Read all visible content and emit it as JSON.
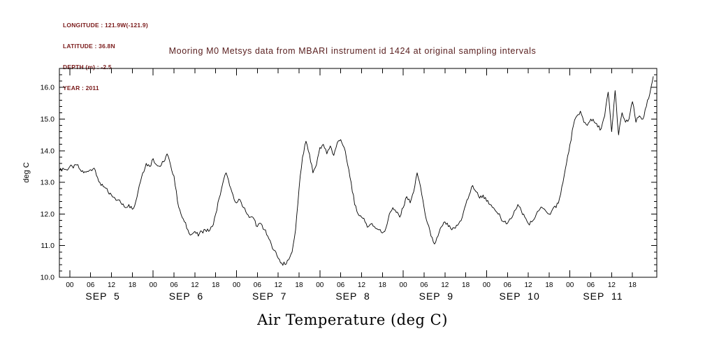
{
  "header": {
    "meta_lines": [
      "LONGITUDE : 121.9W(-121.9)",
      "LATITUDE : 36.8N",
      "DEPTH (m) : -2.5",
      "YEAR : 2011"
    ],
    "title": "Mooring M0 Metsys data from MBARI instrument id 1424 at original sampling intervals"
  },
  "colors": {
    "metadata_text": "#7a1a1a",
    "title_text": "#5a2020",
    "plot_line": "#000000",
    "axis": "#000000"
  },
  "chart_data": {
    "type": "line",
    "title": "Mooring M0 Metsys data from MBARI instrument id 1424 at original sampling intervals",
    "xlabel": "Air Temperature (deg C)",
    "ylabel": "deg C",
    "ylim": [
      10.0,
      16.6
    ],
    "yticks": [
      10.0,
      11.0,
      12.0,
      13.0,
      14.0,
      15.0,
      16.0
    ],
    "y_minor_step": 0.2,
    "grid": false,
    "x_hours_domain": [
      -3,
      169
    ],
    "x_tick_step_hours": 6,
    "x_tick_range_hours": [
      0,
      162
    ],
    "x_tick_label_cycle": [
      "00",
      "06",
      "12",
      "18"
    ],
    "day_labels": [
      {
        "label": "SEP 5",
        "hour": 9.5
      },
      {
        "label": "SEP 6",
        "hour": 33.5
      },
      {
        "label": "SEP 7",
        "hour": 57.5
      },
      {
        "label": "SEP 8",
        "hour": 81.5
      },
      {
        "label": "SEP 9",
        "hour": 105.5
      },
      {
        "label": "SEP 10",
        "hour": 129.5
      },
      {
        "label": "SEP 11",
        "hour": 153.5
      }
    ],
    "series": [
      {
        "name": "air_temperature_degC",
        "x_start_hour": -3,
        "x_step_hours": 1,
        "values": [
          13.35,
          13.45,
          13.4,
          13.5,
          13.45,
          13.55,
          13.4,
          13.3,
          13.35,
          13.4,
          13.45,
          13.15,
          12.9,
          12.85,
          12.7,
          12.6,
          12.5,
          12.45,
          12.3,
          12.2,
          12.3,
          12.15,
          12.4,
          12.9,
          13.3,
          13.6,
          13.5,
          13.75,
          13.55,
          13.5,
          13.65,
          13.9,
          13.55,
          13.2,
          12.4,
          12.0,
          11.75,
          11.5,
          11.35,
          11.45,
          11.3,
          11.45,
          11.5,
          11.45,
          11.6,
          12.0,
          12.5,
          12.95,
          13.3,
          12.9,
          12.6,
          12.35,
          12.45,
          12.2,
          12.0,
          11.9,
          11.85,
          11.6,
          11.7,
          11.5,
          11.3,
          11.05,
          10.85,
          10.6,
          10.45,
          10.4,
          10.55,
          10.8,
          11.5,
          12.8,
          13.8,
          14.3,
          13.9,
          13.3,
          13.55,
          14.1,
          14.2,
          13.9,
          14.15,
          13.85,
          14.25,
          14.35,
          14.1,
          13.55,
          13.0,
          12.3,
          12.0,
          11.9,
          11.75,
          11.6,
          11.7,
          11.55,
          11.5,
          11.4,
          11.55,
          12.0,
          12.2,
          12.05,
          11.9,
          12.2,
          12.55,
          12.35,
          12.7,
          13.3,
          12.85,
          12.2,
          11.7,
          11.3,
          11.05,
          11.3,
          11.6,
          11.75,
          11.6,
          11.5,
          11.55,
          11.7,
          11.9,
          12.3,
          12.6,
          12.9,
          12.7,
          12.5,
          12.6,
          12.4,
          12.3,
          12.2,
          12.05,
          11.9,
          11.75,
          11.7,
          11.85,
          12.1,
          12.3,
          12.1,
          11.9,
          11.7,
          11.75,
          11.9,
          12.1,
          12.2,
          12.1,
          12.0,
          12.15,
          12.2,
          12.5,
          13.0,
          13.6,
          14.2,
          14.8,
          15.1,
          15.25,
          14.9,
          14.8,
          15.0,
          14.9,
          14.75,
          14.7,
          15.1,
          15.85,
          14.6,
          15.9,
          14.5,
          15.2,
          14.9,
          15.0,
          15.55,
          14.9,
          15.1,
          15.0,
          15.4,
          15.8,
          16.35
        ]
      }
    ],
    "noise_amplitude": 0.07
  }
}
